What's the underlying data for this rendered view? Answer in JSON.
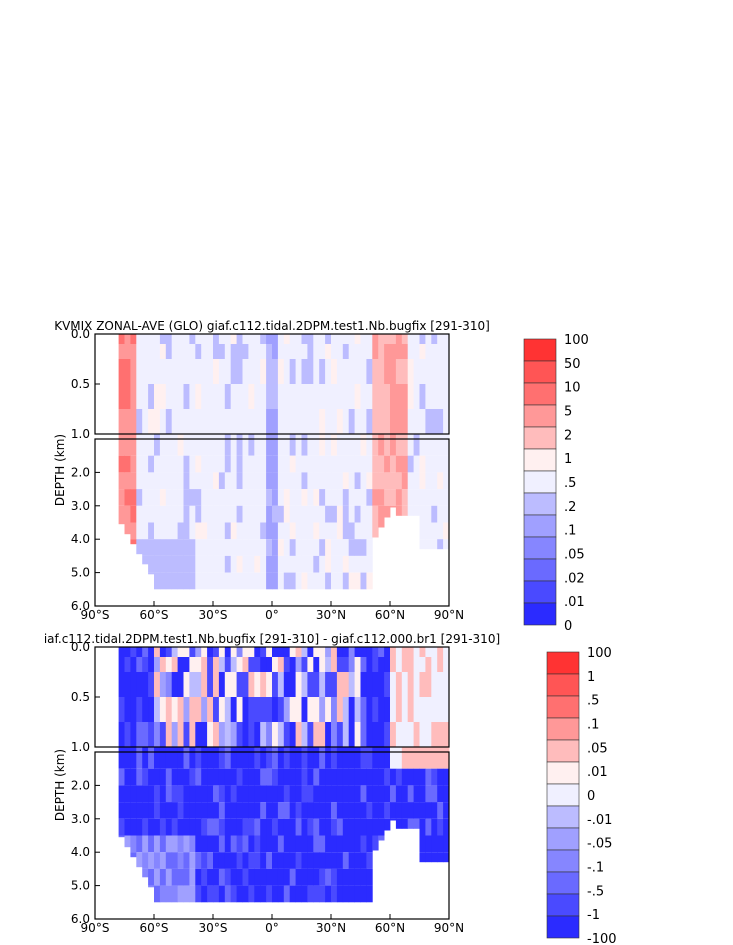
{
  "chart_data": [
    {
      "type": "heatmap",
      "title": "KVMIX ZONAL-AVE (GLO) giaf.c112.tidal.2DPM.test1.Nb.bugfix [291-310]",
      "ylabel": "DEPTH (km)",
      "xlabel": "",
      "x_ticks": [
        "90°S",
        "60°S",
        "30°S",
        "0°",
        "30°N",
        "60°N",
        "90°N"
      ],
      "y_ticks_upper": [
        "0.0",
        "0.5",
        "1.0"
      ],
      "y_ticks_lower": [
        "2.0",
        "3.0",
        "4.0",
        "5.0",
        "6.0"
      ],
      "xlim": [
        -90,
        90
      ],
      "ylim": [
        6.0,
        0.0
      ],
      "colorbar_labels": [
        "100",
        "50",
        "10",
        "5",
        "2",
        "1",
        ".5",
        ".2",
        ".1",
        ".05",
        ".02",
        ".01",
        "0"
      ],
      "colorbar_colors": [
        "#ff3333",
        "#ff5555",
        "#ff7070",
        "#ff9898",
        "#ffbcbc",
        "#fff0f0",
        "#f0f0ff",
        "#bcbcff",
        "#a0a0ff",
        "#8686ff",
        "#6a6aff",
        "#4a4aff",
        "#2b2bff"
      ]
    },
    {
      "type": "heatmap",
      "title": "iaf.c112.tidal.2DPM.test1.Nb.bugfix [291-310] - giaf.c112.000.br1 [291-310]",
      "ylabel": "DEPTH (km)",
      "xlabel": "",
      "x_ticks": [
        "90°S",
        "60°S",
        "30°S",
        "0°",
        "30°N",
        "60°N",
        "90°N"
      ],
      "y_ticks_upper": [
        "0.0",
        "0.5",
        "1.0"
      ],
      "y_ticks_lower": [
        "2.0",
        "3.0",
        "4.0",
        "5.0",
        "6.0"
      ],
      "xlim": [
        -90,
        90
      ],
      "ylim": [
        6.0,
        0.0
      ],
      "colorbar_labels": [
        "100",
        "1",
        ".5",
        ".1",
        ".05",
        ".01",
        "0",
        "-.01",
        "-.05",
        "-.1",
        "-.5",
        "-1",
        "-100"
      ],
      "colorbar_colors": [
        "#ff3333",
        "#ff5555",
        "#ff7070",
        "#ff9898",
        "#ffbcbc",
        "#fff0f0",
        "#f0f0ff",
        "#bcbcff",
        "#a0a0ff",
        "#8686ff",
        "#6a6aff",
        "#4a4aff",
        "#2b2bff"
      ]
    }
  ]
}
